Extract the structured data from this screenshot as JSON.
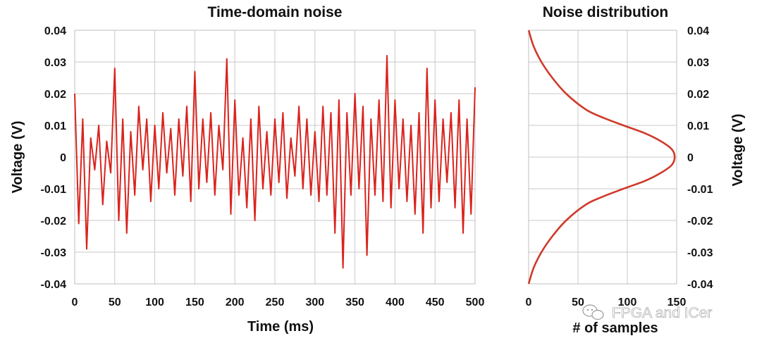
{
  "colors": {
    "line": "#d9231d",
    "curve": "#cf3a2a",
    "grid": "#c8c8c8"
  },
  "watermark": {
    "icon": "wechat-icon",
    "text": "FPGA and ICer"
  },
  "chart_data": [
    {
      "type": "line",
      "title": "Time-domain noise",
      "xlabel": "Time (ms)",
      "ylabel": "Voltage (V)",
      "xlim": [
        0,
        500
      ],
      "ylim": [
        -0.04,
        0.04
      ],
      "xticks": [
        "0",
        "50",
        "100",
        "150",
        "200",
        "250",
        "300",
        "350",
        "400",
        "450",
        "500"
      ],
      "yticks": [
        "0.04",
        "0.03",
        "0.02",
        "0.01",
        "0",
        "-0.01",
        "-0.02",
        "-0.03",
        "-0.04"
      ],
      "grid": true,
      "series": [
        {
          "x": [
            0,
            5,
            10,
            15,
            20,
            25,
            30,
            35,
            40,
            45,
            50,
            55,
            60,
            65,
            70,
            75,
            80,
            85,
            90,
            95,
            100,
            105,
            110,
            115,
            120,
            125,
            130,
            135,
            140,
            145,
            150,
            155,
            160,
            165,
            170,
            175,
            180,
            185,
            190,
            195,
            200,
            205,
            210,
            215,
            220,
            225,
            230,
            235,
            240,
            245,
            250,
            255,
            260,
            265,
            270,
            275,
            280,
            285,
            290,
            295,
            300,
            305,
            310,
            315,
            320,
            325,
            330,
            335,
            340,
            345,
            350,
            355,
            360,
            365,
            370,
            375,
            380,
            385,
            390,
            395,
            400,
            405,
            410,
            415,
            420,
            425,
            430,
            435,
            440,
            445,
            450,
            455,
            460,
            465,
            470,
            475,
            480,
            485,
            490,
            495,
            500
          ],
          "y": [
            0.02,
            -0.021,
            0.012,
            -0.029,
            0.006,
            -0.004,
            0.01,
            -0.015,
            0.005,
            -0.005,
            0.028,
            -0.02,
            0.012,
            -0.024,
            0.008,
            -0.012,
            0.016,
            -0.004,
            0.012,
            -0.014,
            0.01,
            -0.01,
            0.014,
            -0.005,
            0.009,
            -0.012,
            0.012,
            -0.006,
            0.016,
            -0.014,
            0.027,
            -0.01,
            0.012,
            -0.008,
            0.014,
            -0.012,
            0.01,
            -0.004,
            0.031,
            -0.018,
            0.018,
            -0.012,
            0.006,
            -0.016,
            0.012,
            -0.02,
            0.016,
            -0.01,
            0.008,
            -0.012,
            0.012,
            -0.008,
            0.014,
            -0.013,
            0.006,
            -0.006,
            0.016,
            -0.01,
            0.012,
            -0.012,
            0.008,
            -0.014,
            0.016,
            -0.012,
            0.014,
            -0.024,
            0.018,
            -0.035,
            0.014,
            -0.012,
            0.02,
            -0.01,
            0.016,
            -0.031,
            0.012,
            -0.012,
            0.018,
            -0.014,
            0.032,
            -0.016,
            0.018,
            -0.01,
            0.012,
            -0.014,
            0.01,
            -0.018,
            0.014,
            -0.024,
            0.028,
            -0.016,
            0.018,
            -0.014,
            0.012,
            -0.008,
            0.014,
            -0.016,
            0.018,
            -0.024,
            0.012,
            -0.018,
            0.022
          ]
        }
      ]
    },
    {
      "type": "line",
      "title": "Noise distribution",
      "xlabel": "# of samples",
      "ylabel": "Voltage (V)",
      "xlim": [
        0,
        150
      ],
      "ylim": [
        -0.04,
        0.04
      ],
      "xticks": [
        "0",
        "50",
        "100",
        "150"
      ],
      "yticks": [
        "0.04",
        "0.03",
        "0.02",
        "0.01",
        "0",
        "-0.01",
        "-0.02",
        "-0.03",
        "-0.04"
      ],
      "grid": true,
      "series": [
        {
          "y": [
            0.04,
            0.035,
            0.03,
            0.025,
            0.02,
            0.015,
            0.0125,
            0.01,
            0.0075,
            0.005,
            0.0025,
            0,
            -0.0025,
            -0.005,
            -0.0075,
            -0.01,
            -0.0125,
            -0.015,
            -0.02,
            -0.025,
            -0.03,
            -0.035,
            -0.04
          ],
          "x": [
            0,
            5,
            13,
            24,
            38,
            58,
            75,
            96,
            118,
            134,
            145,
            148,
            145,
            134,
            118,
            96,
            75,
            58,
            38,
            24,
            13,
            5,
            0
          ]
        }
      ]
    }
  ]
}
